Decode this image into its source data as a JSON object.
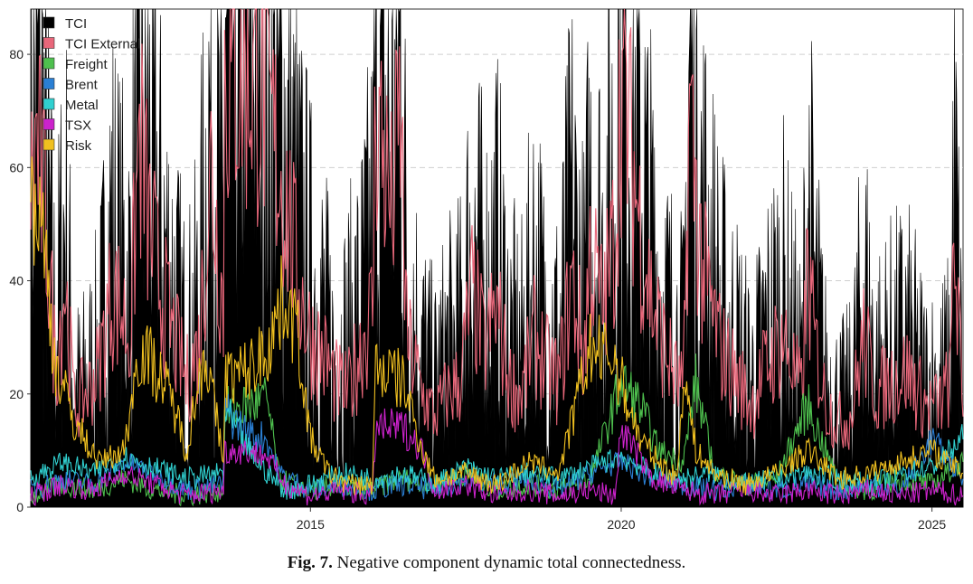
{
  "chart_data": {
    "type": "area",
    "title": "",
    "xlabel": "",
    "ylabel": "",
    "xlim": [
      2010.5,
      2025.5
    ],
    "ylim": [
      0,
      88
    ],
    "grid": "horizontal dashed",
    "legend_position": "top-left",
    "x_ticks": [
      "2015",
      "2020",
      "2025"
    ],
    "y_ticks": [
      "0",
      "20",
      "40",
      "60",
      "80"
    ],
    "series": [
      {
        "name": "TCI",
        "color": "#000000",
        "style": "filled-area",
        "x": [
          2010.5,
          2010.6,
          2010.75,
          2010.9,
          2011.05,
          2011.2,
          2011.4,
          2011.6,
          2011.8,
          2011.95,
          2012.1,
          2012.25,
          2012.4,
          2012.6,
          2012.8,
          2013.0,
          2013.2,
          2013.4,
          2013.6,
          2013.62,
          2013.9,
          2014.2,
          2014.4,
          2014.6,
          2014.8,
          2015.0,
          2015.2,
          2015.4,
          2015.6,
          2015.8,
          2016.0,
          2016.05,
          2016.3,
          2016.45,
          2016.55,
          2016.8,
          2017.0,
          2017.2,
          2017.4,
          2017.6,
          2017.8,
          2018.0,
          2018.2,
          2018.4,
          2018.6,
          2018.8,
          2019.0,
          2019.2,
          2019.4,
          2019.5,
          2019.7,
          2019.9,
          2020.0,
          2020.1,
          2020.3,
          2020.5,
          2020.7,
          2020.9,
          2021.0,
          2021.1,
          2021.3,
          2021.6,
          2021.9,
          2022.1,
          2022.3,
          2022.6,
          2022.9,
          2023.0,
          2023.1,
          2023.3,
          2023.5,
          2023.7,
          2023.9,
          2024.1,
          2024.3,
          2024.6,
          2024.9,
          2025.1,
          2025.3,
          2025.35,
          2025.5
        ],
        "values": [
          60,
          80,
          55,
          30,
          52,
          20,
          22,
          28,
          50,
          42,
          40,
          77,
          62,
          48,
          38,
          28,
          35,
          72,
          45,
          87,
          87,
          86,
          75,
          65,
          50,
          40,
          35,
          25,
          30,
          35,
          48,
          80,
          62,
          80,
          40,
          28,
          22,
          28,
          30,
          48,
          38,
          45,
          30,
          28,
          42,
          32,
          30,
          52,
          35,
          55,
          45,
          62,
          86,
          78,
          60,
          45,
          35,
          30,
          28,
          80,
          52,
          35,
          28,
          22,
          30,
          38,
          24,
          55,
          40,
          22,
          18,
          20,
          40,
          25,
          28,
          30,
          22,
          22,
          25,
          62,
          18
        ]
      },
      {
        "name": "TCI External",
        "color": "#e8677a",
        "style": "line",
        "x": [
          2010.5,
          2010.6,
          2010.75,
          2010.9,
          2011.05,
          2011.2,
          2011.4,
          2011.6,
          2011.8,
          2011.95,
          2012.1,
          2012.25,
          2012.4,
          2012.6,
          2012.8,
          2013.0,
          2013.2,
          2013.4,
          2013.6,
          2013.62,
          2013.9,
          2014.2,
          2014.4,
          2014.6,
          2014.8,
          2015.0,
          2015.2,
          2015.4,
          2015.6,
          2015.8,
          2016.0,
          2016.05,
          2016.3,
          2016.45,
          2016.55,
          2016.8,
          2017.0,
          2017.2,
          2017.4,
          2017.6,
          2017.8,
          2018.0,
          2018.2,
          2018.4,
          2018.6,
          2018.8,
          2019.0,
          2019.2,
          2019.4,
          2019.5,
          2019.7,
          2019.9,
          2020.0,
          2020.1,
          2020.3,
          2020.5,
          2020.7,
          2020.9,
          2021.0,
          2021.1,
          2021.3,
          2021.6,
          2021.9,
          2022.1,
          2022.3,
          2022.6,
          2022.9,
          2023.0,
          2023.1,
          2023.3,
          2023.5,
          2023.7,
          2023.9,
          2024.1,
          2024.3,
          2024.6,
          2024.9,
          2025.1,
          2025.3,
          2025.35,
          2025.5
        ],
        "values": [
          55,
          65,
          50,
          25,
          40,
          18,
          20,
          25,
          38,
          35,
          30,
          66,
          50,
          38,
          30,
          22,
          28,
          60,
          35,
          77,
          77,
          76,
          65,
          55,
          40,
          30,
          27,
          22,
          20,
          28,
          35,
          72,
          52,
          68,
          30,
          20,
          16,
          20,
          22,
          38,
          28,
          35,
          22,
          20,
          30,
          25,
          22,
          40,
          27,
          45,
          35,
          48,
          76,
          68,
          50,
          36,
          28,
          22,
          20,
          70,
          42,
          28,
          22,
          18,
          24,
          30,
          20,
          42,
          30,
          18,
          15,
          16,
          30,
          20,
          22,
          24,
          18,
          18,
          22,
          50,
          16
        ]
      },
      {
        "name": "Freight",
        "color": "#4ec04e",
        "style": "line",
        "x": [
          2010.5,
          2011.0,
          2011.5,
          2012.0,
          2012.5,
          2013.0,
          2013.6,
          2013.62,
          2014.0,
          2014.3,
          2014.5,
          2015.0,
          2015.5,
          2016.0,
          2016.5,
          2017.0,
          2017.5,
          2018.0,
          2018.5,
          2019.0,
          2019.5,
          2020.0,
          2020.3,
          2020.6,
          2021.0,
          2021.2,
          2021.5,
          2022.0,
          2022.5,
          2023.0,
          2023.5,
          2024.0,
          2024.5,
          2025.0,
          2025.5
        ],
        "values": [
          2,
          4,
          3,
          5,
          3,
          2,
          3,
          17,
          18,
          19,
          5,
          3,
          4,
          3,
          5,
          4,
          6,
          3,
          4,
          3,
          5,
          22,
          18,
          10,
          8,
          22,
          6,
          4,
          5,
          18,
          4,
          3,
          5,
          4,
          8
        ]
      },
      {
        "name": "Brent",
        "color": "#2a7fd4",
        "style": "line",
        "x": [
          2010.5,
          2011.0,
          2011.5,
          2012.0,
          2012.5,
          2013.0,
          2013.6,
          2013.62,
          2014.0,
          2014.3,
          2014.5,
          2015.0,
          2015.5,
          2016.0,
          2016.5,
          2017.0,
          2017.5,
          2018.0,
          2018.5,
          2019.0,
          2019.5,
          2020.0,
          2020.5,
          2021.0,
          2021.5,
          2022.0,
          2022.5,
          2023.0,
          2023.5,
          2024.0,
          2024.5,
          2025.0,
          2025.5
        ],
        "values": [
          3,
          5,
          4,
          8,
          6,
          3,
          4,
          17,
          13,
          12,
          6,
          3,
          4,
          3,
          4,
          3,
          5,
          4,
          5,
          3,
          6,
          8,
          5,
          4,
          3,
          4,
          3,
          4,
          3,
          4,
          3,
          12,
          5
        ]
      },
      {
        "name": "Metal",
        "color": "#30d0d0",
        "style": "line",
        "x": [
          2010.5,
          2011.0,
          2011.5,
          2012.0,
          2012.5,
          2013.0,
          2013.6,
          2013.62,
          2014.0,
          2014.3,
          2014.6,
          2015.0,
          2015.5,
          2016.0,
          2016.5,
          2017.0,
          2017.5,
          2018.0,
          2018.5,
          2019.0,
          2019.5,
          2020.0,
          2020.5,
          2021.0,
          2021.5,
          2022.0,
          2022.5,
          2023.0,
          2023.5,
          2024.0,
          2024.5,
          2025.0,
          2025.5
        ],
        "values": [
          5,
          8,
          6,
          9,
          7,
          5,
          6,
          17,
          10,
          6,
          3,
          4,
          6,
          5,
          6,
          4,
          7,
          5,
          6,
          5,
          7,
          9,
          6,
          5,
          6,
          4,
          5,
          6,
          5,
          4,
          6,
          7,
          12
        ]
      },
      {
        "name": "TSX",
        "color": "#cc22cc",
        "style": "line",
        "x": [
          2010.5,
          2011.0,
          2011.5,
          2012.0,
          2012.5,
          2013.0,
          2013.6,
          2013.62,
          2014.0,
          2014.3,
          2014.6,
          2015.0,
          2015.5,
          2016.0,
          2016.05,
          2016.5,
          2016.8,
          2017.0,
          2017.5,
          2018.0,
          2018.5,
          2019.0,
          2019.5,
          2019.9,
          2020.0,
          2020.5,
          2021.0,
          2021.5,
          2022.0,
          2022.5,
          2023.0,
          2023.5,
          2024.0,
          2024.5,
          2025.0,
          2025.5
        ],
        "values": [
          2,
          4,
          3,
          6,
          4,
          2,
          3,
          10,
          10,
          9,
          4,
          2,
          3,
          2,
          14,
          14,
          10,
          3,
          4,
          2,
          3,
          2,
          3,
          2,
          14,
          5,
          3,
          2,
          3,
          2,
          3,
          2,
          3,
          2,
          3,
          2
        ]
      },
      {
        "name": "Risk",
        "color": "#f0c020",
        "style": "line",
        "x": [
          2010.5,
          2010.7,
          2010.9,
          2011.2,
          2011.6,
          2012.0,
          2012.25,
          2012.5,
          2012.8,
          2013.0,
          2013.3,
          2013.6,
          2013.62,
          2014.0,
          2014.3,
          2014.6,
          2014.8,
          2015.0,
          2015.3,
          2015.6,
          2016.0,
          2016.05,
          2016.5,
          2016.8,
          2017.0,
          2017.5,
          2018.0,
          2018.5,
          2019.0,
          2019.5,
          2019.9,
          2020.0,
          2020.3,
          2020.6,
          2020.9,
          2021.0,
          2021.2,
          2021.5,
          2022.0,
          2022.5,
          2023.0,
          2023.5,
          2024.0,
          2024.5,
          2025.0,
          2025.5
        ],
        "values": [
          58,
          48,
          25,
          15,
          8,
          10,
          28,
          25,
          18,
          10,
          28,
          8,
          23,
          24,
          28,
          38,
          30,
          12,
          6,
          4,
          4,
          25,
          22,
          10,
          5,
          6,
          4,
          8,
          6,
          28,
          26,
          22,
          12,
          8,
          5,
          24,
          10,
          6,
          4,
          6,
          10,
          5,
          6,
          8,
          10,
          6
        ]
      }
    ]
  },
  "caption": {
    "label": "Fig. 7.",
    "text": "Negative component dynamic total connectedness."
  }
}
